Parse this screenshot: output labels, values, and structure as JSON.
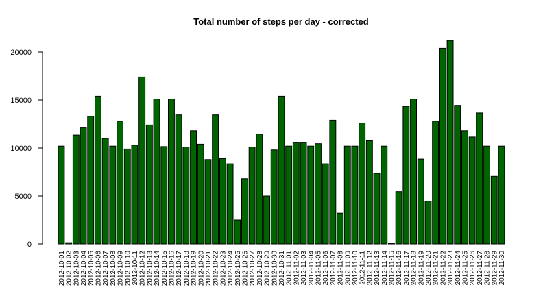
{
  "chart_data": {
    "type": "bar",
    "title": "Total number of steps per day - corrected",
    "xlabel": "",
    "ylabel": "",
    "ylim": [
      0,
      21500
    ],
    "yticks": [
      "0",
      "5000",
      "10000",
      "15000",
      "20000"
    ],
    "bar_color": "#006400",
    "categories": [
      "2012-10-01",
      "2012-10-02",
      "2012-10-03",
      "2012-10-04",
      "2012-10-05",
      "2012-10-06",
      "2012-10-07",
      "2012-10-08",
      "2012-10-09",
      "2012-10-10",
      "2012-10-11",
      "2012-10-12",
      "2012-10-13",
      "2012-10-14",
      "2012-10-15",
      "2012-10-16",
      "2012-10-17",
      "2012-10-18",
      "2012-10-19",
      "2012-10-20",
      "2012-10-21",
      "2012-10-22",
      "2012-10-23",
      "2012-10-24",
      "2012-10-25",
      "2012-10-26",
      "2012-10-27",
      "2012-10-28",
      "2012-10-29",
      "2012-10-30",
      "2012-10-31",
      "2012-11-01",
      "2012-11-02",
      "2012-11-03",
      "2012-11-04",
      "2012-11-05",
      "2012-11-06",
      "2012-11-07",
      "2012-11-08",
      "2012-11-09",
      "2012-11-10",
      "2012-11-11",
      "2012-11-12",
      "2012-11-13",
      "2012-11-14",
      "2012-11-15",
      "2012-11-16",
      "2012-11-17",
      "2012-11-18",
      "2012-11-19",
      "2012-11-20",
      "2012-11-21",
      "2012-11-22",
      "2012-11-23",
      "2012-11-24",
      "2012-11-25",
      "2012-11-26",
      "2012-11-27",
      "2012-11-28",
      "2012-11-29",
      "2012-11-30"
    ],
    "values": [
      10200,
      130,
      11350,
      12100,
      13300,
      15400,
      11000,
      10200,
      12800,
      9900,
      10300,
      17400,
      12400,
      15100,
      10150,
      15100,
      13450,
      10100,
      11800,
      10400,
      8800,
      13450,
      8900,
      8350,
      2500,
      6800,
      10100,
      11450,
      5000,
      9800,
      15400,
      10200,
      10600,
      10600,
      10200,
      10450,
      8350,
      12900,
      3200,
      10200,
      10200,
      12600,
      10750,
      7350,
      10200,
      40,
      5450,
      14350,
      15100,
      8850,
      4450,
      12800,
      20400,
      21200,
      14450,
      11800,
      11150,
      13650,
      10200,
      7050,
      10200
    ]
  }
}
